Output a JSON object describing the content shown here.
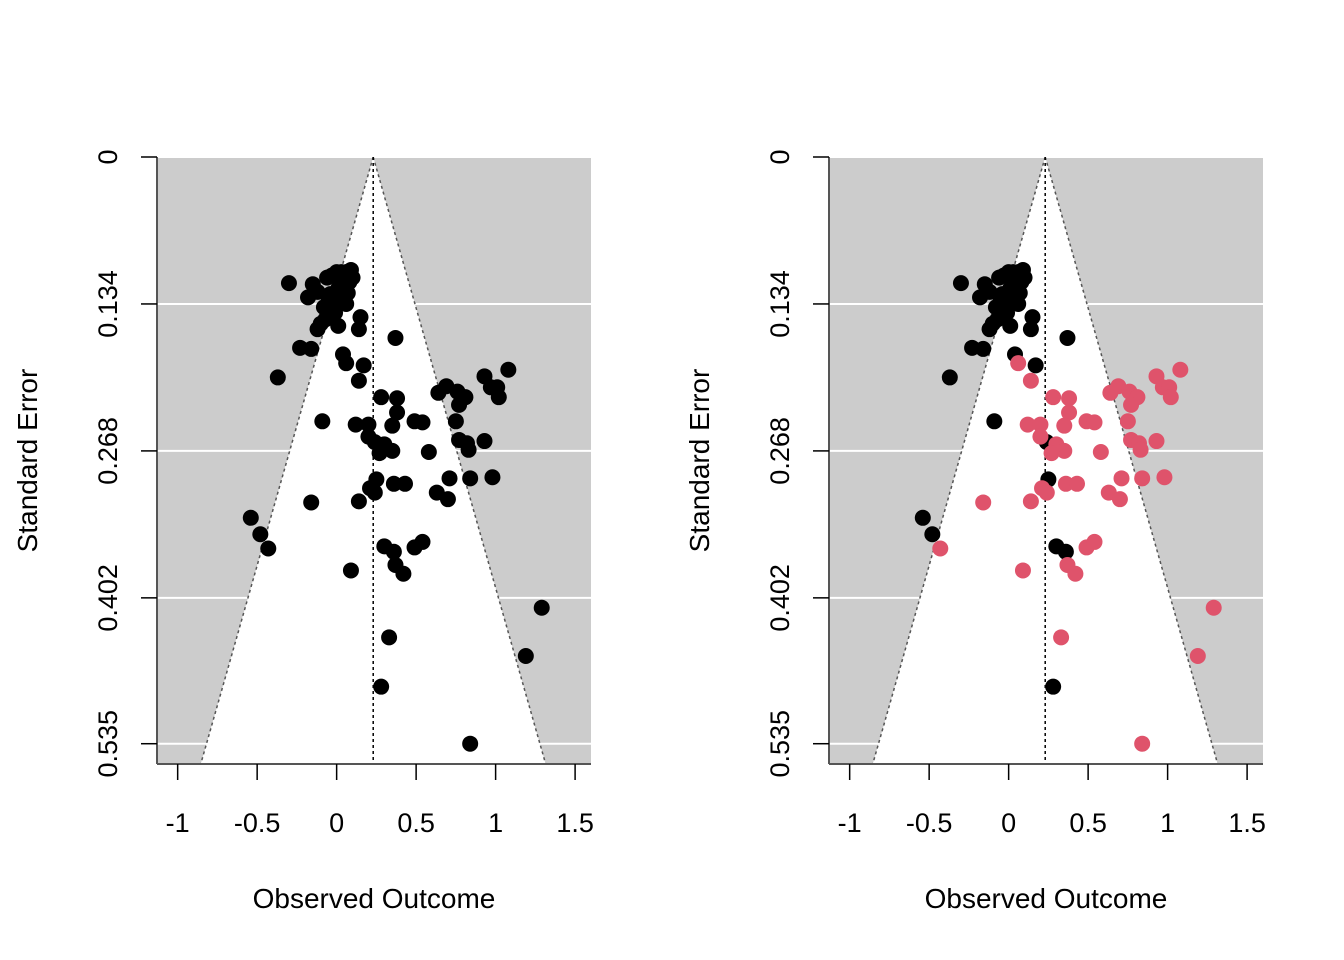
{
  "chart_data": [
    {
      "type": "scatter",
      "subtype": "funnel",
      "xlabel": "Observed Outcome",
      "ylabel": "Standard Error",
      "xlim": [
        -1.13,
        1.6
      ],
      "ylim": [
        0.5535,
        0
      ],
      "x_ticks": [
        -1,
        -0.5,
        0,
        0.5,
        1,
        1.5
      ],
      "x_tick_labels": [
        "-1",
        "-0.5",
        "0",
        "0.5",
        "1",
        "1.5"
      ],
      "y_ticks": [
        0,
        0.134,
        0.268,
        0.402,
        0.535
      ],
      "y_tick_labels": [
        "0",
        "0.134",
        "0.268",
        "0.402",
        "0.535"
      ],
      "grid": true,
      "background_color": "#cccccc",
      "funnel": {
        "center": 0.23,
        "apex_se": 0,
        "z": 1.96,
        "fill": "#ffffff"
      },
      "point_color": "#000000",
      "series": [
        {
          "points": [
            [
              0,
              0.105
            ],
            [
              0.03,
              0.105
            ],
            [
              0.06,
              0.105
            ],
            [
              0.09,
              0.103
            ],
            [
              0.02,
              0.11
            ],
            [
              0.05,
              0.112
            ],
            [
              0.08,
              0.114
            ],
            [
              0.1,
              0.11
            ],
            [
              -0.03,
              0.108
            ],
            [
              -0.06,
              0.11
            ],
            [
              -0.3,
              0.115
            ],
            [
              -0.15,
              0.116
            ],
            [
              -0.18,
              0.128
            ],
            [
              -0.12,
              0.123
            ],
            [
              -0.04,
              0.125
            ],
            [
              0.01,
              0.12
            ],
            [
              0.04,
              0.127
            ],
            [
              0.07,
              0.124
            ],
            [
              -0.08,
              0.137
            ],
            [
              -0.05,
              0.13
            ],
            [
              -0.02,
              0.128
            ],
            [
              0.03,
              0.133
            ],
            [
              0.06,
              0.134
            ],
            [
              -0.01,
              0.142
            ],
            [
              -0.07,
              0.148
            ],
            [
              -0.12,
              0.157
            ],
            [
              0.01,
              0.154
            ],
            [
              0.14,
              0.157
            ],
            [
              -0.1,
              0.152
            ],
            [
              0.15,
              0.146
            ],
            [
              -0.23,
              0.174
            ],
            [
              -0.16,
              0.175
            ],
            [
              0.37,
              0.165
            ],
            [
              0.04,
              0.18
            ],
            [
              0.06,
              0.188
            ],
            [
              -0.37,
              0.201
            ],
            [
              0.17,
              0.19
            ],
            [
              0.14,
              0.204
            ],
            [
              1.08,
              0.194
            ],
            [
              0.93,
              0.2
            ],
            [
              0.97,
              0.21
            ],
            [
              1.01,
              0.21
            ],
            [
              0.69,
              0.209
            ],
            [
              0.64,
              0.215
            ],
            [
              0.76,
              0.214
            ],
            [
              0.81,
              0.219
            ],
            [
              1.02,
              0.219
            ],
            [
              0.28,
              0.219
            ],
            [
              0.38,
              0.22
            ],
            [
              0.38,
              0.233
            ],
            [
              0.77,
              0.226
            ],
            [
              0.75,
              0.241
            ],
            [
              -0.09,
              0.241
            ],
            [
              0.12,
              0.244
            ],
            [
              0.2,
              0.244
            ],
            [
              0.49,
              0.241
            ],
            [
              0.54,
              0.242
            ],
            [
              0.35,
              0.245
            ],
            [
              0.2,
              0.255
            ],
            [
              0.24,
              0.26
            ],
            [
              0.3,
              0.262
            ],
            [
              0.35,
              0.268
            ],
            [
              0.58,
              0.269
            ],
            [
              0.27,
              0.27
            ],
            [
              0.77,
              0.258
            ],
            [
              0.82,
              0.261
            ],
            [
              0.83,
              0.267
            ],
            [
              0.93,
              0.259
            ],
            [
              0.98,
              0.292
            ],
            [
              0.71,
              0.293
            ],
            [
              0.84,
              0.293
            ],
            [
              0.25,
              0.294
            ],
            [
              0.36,
              0.298
            ],
            [
              0.43,
              0.298
            ],
            [
              0.21,
              0.302
            ],
            [
              0.24,
              0.306
            ],
            [
              0.63,
              0.306
            ],
            [
              0.7,
              0.312
            ],
            [
              0.14,
              0.314
            ],
            [
              -0.16,
              0.315
            ],
            [
              -0.54,
              0.329
            ],
            [
              -0.48,
              0.344
            ],
            [
              -0.43,
              0.357
            ],
            [
              0.3,
              0.355
            ],
            [
              0.36,
              0.36
            ],
            [
              0.49,
              0.356
            ],
            [
              0.54,
              0.351
            ],
            [
              0.37,
              0.372
            ],
            [
              0.42,
              0.38
            ],
            [
              0.09,
              0.377
            ],
            [
              1.29,
              0.411
            ],
            [
              1.19,
              0.455
            ],
            [
              0.33,
              0.438
            ],
            [
              0.28,
              0.483
            ],
            [
              0.84,
              0.535
            ]
          ]
        }
      ]
    },
    {
      "type": "scatter",
      "subtype": "funnel",
      "xlabel": "Observed Outcome",
      "ylabel": "Standard Error",
      "xlim": [
        -1.13,
        1.6
      ],
      "ylim": [
        0.5535,
        0
      ],
      "x_ticks": [
        -1,
        -0.5,
        0,
        0.5,
        1,
        1.5
      ],
      "x_tick_labels": [
        "-1",
        "-0.5",
        "0",
        "0.5",
        "1",
        "1.5"
      ],
      "y_ticks": [
        0,
        0.134,
        0.268,
        0.402,
        0.535
      ],
      "y_tick_labels": [
        "0",
        "0.134",
        "0.268",
        "0.402",
        "0.535"
      ],
      "grid": true,
      "background_color": "#cccccc",
      "funnel": {
        "center": 0.23,
        "apex_se": 0,
        "z": 1.96,
        "fill": "#ffffff"
      },
      "series": [
        {
          "color": "#000000",
          "points": [
            [
              0,
              0.105
            ],
            [
              0.03,
              0.105
            ],
            [
              0.06,
              0.105
            ],
            [
              0.09,
              0.103
            ],
            [
              0.02,
              0.11
            ],
            [
              0.05,
              0.112
            ],
            [
              0.08,
              0.114
            ],
            [
              0.1,
              0.11
            ],
            [
              -0.03,
              0.108
            ],
            [
              -0.06,
              0.11
            ],
            [
              -0.3,
              0.115
            ],
            [
              -0.15,
              0.116
            ],
            [
              -0.18,
              0.128
            ],
            [
              -0.12,
              0.123
            ],
            [
              -0.04,
              0.125
            ],
            [
              0.01,
              0.12
            ],
            [
              0.04,
              0.127
            ],
            [
              0.07,
              0.124
            ],
            [
              -0.08,
              0.137
            ],
            [
              -0.05,
              0.13
            ],
            [
              -0.02,
              0.128
            ],
            [
              0.03,
              0.133
            ],
            [
              0.06,
              0.134
            ],
            [
              -0.01,
              0.142
            ],
            [
              -0.07,
              0.148
            ],
            [
              -0.12,
              0.157
            ],
            [
              0.01,
              0.154
            ],
            [
              0.14,
              0.157
            ],
            [
              -0.1,
              0.152
            ],
            [
              0.15,
              0.146
            ],
            [
              -0.23,
              0.174
            ],
            [
              -0.16,
              0.175
            ],
            [
              0.37,
              0.165
            ],
            [
              0.04,
              0.18
            ],
            [
              0.17,
              0.19
            ],
            [
              -0.37,
              0.201
            ],
            [
              -0.09,
              0.241
            ],
            [
              0.24,
              0.26
            ],
            [
              0.25,
              0.294
            ],
            [
              -0.54,
              0.329
            ],
            [
              -0.48,
              0.344
            ],
            [
              0.3,
              0.355
            ],
            [
              0.36,
              0.36
            ],
            [
              0.28,
              0.483
            ]
          ]
        },
        {
          "color": "#df536b",
          "points": [
            [
              0.06,
              0.188
            ],
            [
              0.14,
              0.204
            ],
            [
              1.08,
              0.194
            ],
            [
              0.93,
              0.2
            ],
            [
              0.97,
              0.21
            ],
            [
              1.01,
              0.21
            ],
            [
              0.69,
              0.209
            ],
            [
              0.64,
              0.215
            ],
            [
              0.76,
              0.214
            ],
            [
              0.81,
              0.219
            ],
            [
              1.02,
              0.219
            ],
            [
              0.28,
              0.219
            ],
            [
              0.38,
              0.22
            ],
            [
              0.38,
              0.233
            ],
            [
              0.77,
              0.226
            ],
            [
              0.75,
              0.241
            ],
            [
              0.12,
              0.244
            ],
            [
              0.2,
              0.244
            ],
            [
              0.49,
              0.241
            ],
            [
              0.54,
              0.242
            ],
            [
              0.35,
              0.245
            ],
            [
              0.2,
              0.255
            ],
            [
              0.3,
              0.262
            ],
            [
              0.35,
              0.268
            ],
            [
              0.58,
              0.269
            ],
            [
              0.27,
              0.27
            ],
            [
              0.77,
              0.258
            ],
            [
              0.82,
              0.261
            ],
            [
              0.83,
              0.267
            ],
            [
              0.93,
              0.259
            ],
            [
              0.98,
              0.292
            ],
            [
              0.71,
              0.293
            ],
            [
              0.84,
              0.293
            ],
            [
              0.36,
              0.298
            ],
            [
              0.43,
              0.298
            ],
            [
              0.21,
              0.302
            ],
            [
              0.24,
              0.306
            ],
            [
              0.63,
              0.306
            ],
            [
              0.7,
              0.312
            ],
            [
              0.14,
              0.314
            ],
            [
              -0.16,
              0.315
            ],
            [
              -0.43,
              0.357
            ],
            [
              0.49,
              0.356
            ],
            [
              0.54,
              0.351
            ],
            [
              0.37,
              0.372
            ],
            [
              0.42,
              0.38
            ],
            [
              0.09,
              0.377
            ],
            [
              1.29,
              0.411
            ],
            [
              1.19,
              0.455
            ],
            [
              0.33,
              0.438
            ],
            [
              0.84,
              0.535
            ]
          ]
        }
      ]
    }
  ]
}
